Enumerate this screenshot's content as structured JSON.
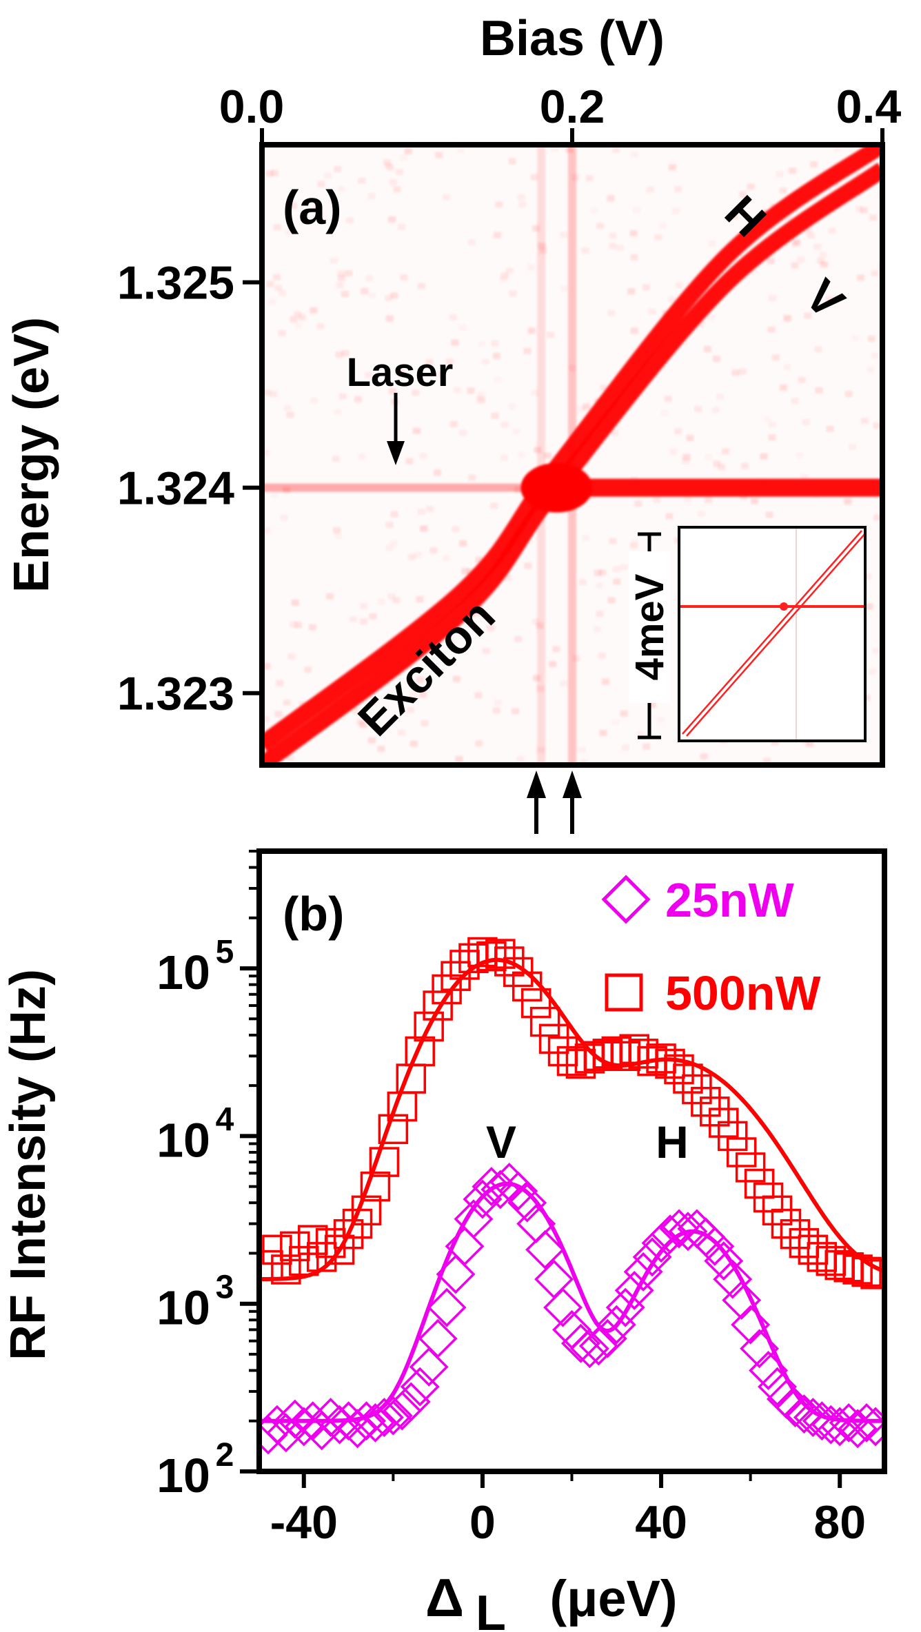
{
  "chart_data": [
    {
      "panel": "(a)",
      "type": "heatmap",
      "xlabel": "Bias (V)",
      "ylabel": "Energy (eV)",
      "xlim": [
        0.0,
        0.4
      ],
      "ylim": [
        1.32265,
        1.32567
      ],
      "xticks": [
        0.0,
        0.2,
        0.4
      ],
      "xtick_labels": [
        "0.0",
        "0.2",
        "0.4"
      ],
      "yticks": [
        1.323,
        1.324,
        1.325
      ],
      "ytick_labels": [
        "1.323",
        "1.324",
        "1.325"
      ],
      "laser_energy": 1.324,
      "bias_marker_lines": [
        0.18,
        0.2
      ],
      "exciton_lines": [
        {
          "name": "V",
          "points": [
            [
              0.0,
              1.32265
            ],
            [
              0.13,
              1.3234
            ],
            [
              0.19,
              1.324
            ],
            [
              0.3,
              1.325
            ],
            [
              0.4,
              1.32555
            ]
          ]
        },
        {
          "name": "H",
          "points": [
            [
              0.0,
              1.32275
            ],
            [
              0.13,
              1.3235
            ],
            [
              0.19,
              1.3241
            ],
            [
              0.3,
              1.32513
            ],
            [
              0.4,
              1.32567
            ]
          ]
        }
      ],
      "annotations": {
        "panel_label": "(a)",
        "H": "H",
        "V": "V",
        "laser": "Laser",
        "exciton": "Exciton",
        "inset_scale": "4meV"
      },
      "colormap": "white to red",
      "color": "#ff0000"
    },
    {
      "panel": "(b)",
      "type": "scatter",
      "yscale": "log",
      "xlabel_main": "Δ",
      "xlabel_sub": "L",
      "xlabel_unit": "(μeV)",
      "ylabel": "RF Intensity (Hz)",
      "xlim": [
        -50,
        90
      ],
      "ylim": [
        100,
        500000
      ],
      "xticks": [
        -40,
        0,
        40,
        80
      ],
      "xtick_labels": [
        "-40",
        "0",
        "40",
        "80"
      ],
      "yticks": [
        100,
        1000,
        10000,
        100000
      ],
      "ytick_base": "10",
      "ytick_exponents": [
        "2",
        "3",
        "4",
        "5"
      ],
      "annotations": {
        "panel_label": "(b)",
        "V": "V",
        "H": "H"
      },
      "series": [
        {
          "name": "25nW",
          "marker": "diamond",
          "color": "#ee00ee",
          "fit": {
            "baseline": 200,
            "peaks": [
              {
                "center": 5.5,
                "amplitude": 5000,
                "sigma": 9
              },
              {
                "center": 47,
                "amplitude": 2500,
                "sigma": 9
              }
            ]
          },
          "x": [
            -48,
            -46,
            -44,
            -42,
            -40,
            -38,
            -36,
            -34,
            -32,
            -30,
            -28,
            -26,
            -24,
            -22,
            -20,
            -18,
            -16,
            -14,
            -12,
            -10,
            -8,
            -6,
            -4,
            -2,
            0,
            2,
            4,
            6,
            8,
            10,
            12,
            14,
            16,
            18,
            20,
            22,
            24,
            26,
            28,
            30,
            32,
            34,
            36,
            38,
            40,
            42,
            44,
            46,
            48,
            50,
            52,
            54,
            56,
            58,
            60,
            62,
            64,
            66,
            68,
            70,
            72,
            74,
            76,
            78,
            80,
            82,
            84,
            86,
            88
          ],
          "y": [
            165,
            190,
            170,
            205,
            185,
            200,
            175,
            210,
            190,
            200,
            180,
            200,
            195,
            210,
            215,
            230,
            260,
            320,
            420,
            620,
            950,
            1500,
            2200,
            3200,
            4200,
            5000,
            4800,
            5300,
            4700,
            4000,
            3000,
            2100,
            1400,
            950,
            700,
            580,
            540,
            560,
            620,
            750,
            950,
            1200,
            1550,
            1900,
            2300,
            2600,
            2800,
            2700,
            2800,
            2500,
            2200,
            1800,
            1400,
            1050,
            750,
            540,
            400,
            320,
            270,
            240,
            220,
            210,
            200,
            190,
            185,
            195,
            180,
            195,
            185
          ]
        },
        {
          "name": "500nW",
          "marker": "square",
          "color": "#ff0000",
          "fit": {
            "baseline": 1400,
            "peaks": [
              {
                "center": 3,
                "amplitude": 110000,
                "sigma": 11
              },
              {
                "center": 42,
                "amplitude": 27000,
                "sigma": 15
              }
            ]
          },
          "x": [
            -48,
            -46,
            -44,
            -42,
            -40,
            -38,
            -36,
            -34,
            -32,
            -30,
            -28,
            -26,
            -24,
            -22,
            -20,
            -18,
            -16,
            -14,
            -12,
            -10,
            -8,
            -6,
            -4,
            -2,
            0,
            2,
            4,
            6,
            8,
            10,
            12,
            14,
            16,
            18,
            20,
            22,
            24,
            26,
            28,
            30,
            32,
            34,
            36,
            38,
            40,
            42,
            44,
            46,
            48,
            50,
            52,
            54,
            56,
            58,
            60,
            62,
            64,
            66,
            68,
            70,
            72,
            74,
            76,
            78,
            80,
            82,
            84,
            86,
            88
          ],
          "y": [
            1700,
            2100,
            1600,
            2200,
            1800,
            2400,
            1900,
            2300,
            2100,
            2600,
            3000,
            3600,
            5000,
            7000,
            11000,
            15000,
            22000,
            32000,
            45000,
            60000,
            75000,
            90000,
            105000,
            115000,
            125000,
            118000,
            122000,
            110000,
            95000,
            78000,
            62000,
            48000,
            38000,
            32000,
            28000,
            27000,
            29000,
            30000,
            31000,
            32000,
            30000,
            33000,
            31000,
            28000,
            29000,
            27000,
            25000,
            22000,
            19000,
            16000,
            14000,
            12000,
            10000,
            8000,
            6500,
            5200,
            4300,
            3600,
            3000,
            2600,
            2300,
            2100,
            1900,
            1800,
            1700,
            1650,
            1600,
            1550,
            1500
          ]
        }
      ]
    }
  ]
}
